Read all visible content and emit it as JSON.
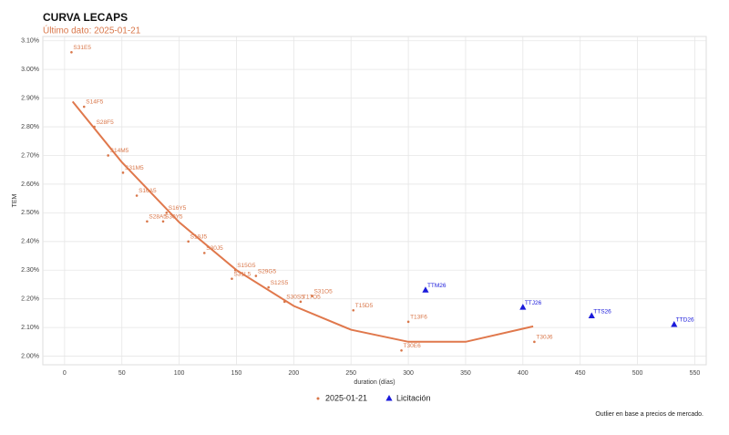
{
  "chart_data": {
    "type": "scatter",
    "title": "CURVA LECAPS",
    "subtitle": "Último dato: 2025-01-21",
    "x_label": "duration (días)",
    "y_label": "TEM",
    "note": "Outlier en base a precios de mercado.",
    "xlim": [
      -19,
      560
    ],
    "ylim": [
      1.97,
      3.115
    ],
    "xticks": [
      0,
      50,
      100,
      150,
      200,
      250,
      300,
      350,
      400,
      450,
      500,
      550
    ],
    "yticks": [
      {
        "value": 2.0,
        "label": "2.00%"
      },
      {
        "value": 2.1,
        "label": "2.10%"
      },
      {
        "value": 2.2,
        "label": "2.20%"
      },
      {
        "value": 2.3,
        "label": "2.30%"
      },
      {
        "value": 2.4,
        "label": "2.40%"
      },
      {
        "value": 2.5,
        "label": "2.50%"
      },
      {
        "value": 2.6,
        "label": "2.60%"
      },
      {
        "value": 2.7,
        "label": "2.70%"
      },
      {
        "value": 2.8,
        "label": "2.80%"
      },
      {
        "value": 2.9,
        "label": "2.90%"
      },
      {
        "value": 3.0,
        "label": "3.00%"
      },
      {
        "value": 3.1,
        "label": "3.10%"
      }
    ],
    "grid": true,
    "series": [
      {
        "name": "2025-01-21",
        "color": "#d9774a",
        "marker": "point",
        "labels": [
          "S31E5",
          "S14F5",
          "S28F5",
          "S14M5",
          "S31M5",
          "S16A5",
          "S28A5",
          "S16Y5",
          "S30Y5",
          "S18J5",
          "S30J5",
          "S31L5",
          "S15G5",
          "S29G5",
          "S12S5",
          "S30S5",
          "T17O5",
          "S31O5",
          "T15D5",
          "T30E6",
          "T13F6",
          "T30J6"
        ],
        "x": [
          6,
          17,
          26,
          38,
          51,
          63,
          72,
          89,
          86,
          108,
          122,
          146,
          149,
          167,
          178,
          192,
          206,
          216,
          252,
          294,
          300,
          410
        ],
        "values": [
          3.06,
          2.87,
          2.8,
          2.7,
          2.64,
          2.56,
          2.47,
          2.5,
          2.47,
          2.4,
          2.36,
          2.27,
          2.3,
          2.28,
          2.24,
          2.19,
          2.19,
          2.21,
          2.16,
          2.02,
          2.12,
          2.05
        ]
      },
      {
        "name": "Licitación",
        "color": "#1a1adb",
        "marker": "triangle",
        "labels": [
          "TTM26",
          "TTJ26",
          "TTS26",
          "TTD26"
        ],
        "x": [
          315,
          400,
          460,
          532
        ],
        "values": [
          2.23,
          2.17,
          2.14,
          2.11
        ]
      }
    ],
    "trend": {
      "color": "#e0784c",
      "x": [
        7,
        50,
        100,
        150,
        200,
        250,
        300,
        350,
        409
      ],
      "values": [
        2.888,
        2.676,
        2.467,
        2.3,
        2.175,
        2.092,
        2.05,
        2.05,
        2.104
      ]
    }
  }
}
